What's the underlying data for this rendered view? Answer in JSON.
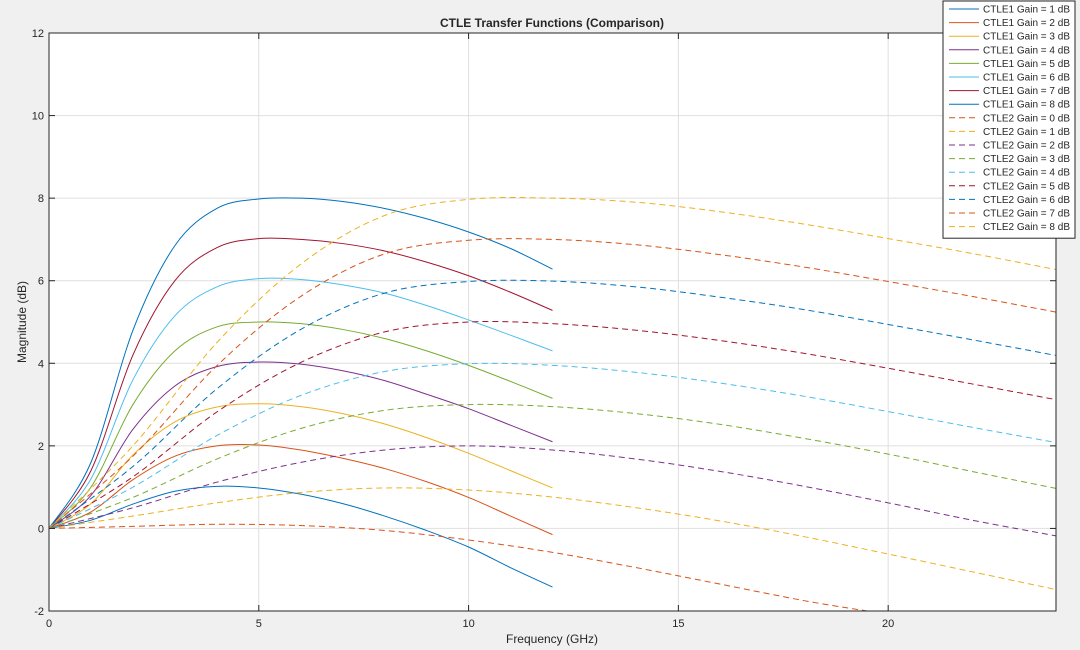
{
  "figure": {
    "background": "#f0f0f0",
    "axes_background": "#ffffff",
    "grid_color": "#dfdfdf"
  },
  "chart_data": {
    "type": "line",
    "title": "CTLE Transfer Functions (Comparison)",
    "xlabel": "Frequency (GHz)",
    "ylabel": "Magnitude (dB)",
    "xlim": [
      0,
      24
    ],
    "ylim": [
      -2,
      12
    ],
    "xticks": [
      0,
      5,
      10,
      15,
      20
    ],
    "yticks": [
      -2,
      0,
      2,
      4,
      6,
      8,
      10,
      12
    ],
    "grid": true,
    "legend_position": "top-right",
    "series": [
      {
        "name": "CTLE1 Gain = 1 dB",
        "style": "solid",
        "color": "#0072BD",
        "x": [
          0,
          1,
          2,
          3,
          4,
          5,
          6,
          7,
          8,
          9,
          10,
          11,
          12
        ],
        "y": [
          0,
          0.2,
          0.59,
          0.9,
          1.02,
          0.98,
          0.83,
          0.6,
          0.3,
          -0.05,
          -0.45,
          -0.95,
          -1.42
        ]
      },
      {
        "name": "CTLE1 Gain = 2 dB",
        "style": "solid",
        "color": "#D95319",
        "x": [
          0,
          1,
          2,
          3,
          4,
          5,
          6,
          7,
          8,
          9,
          10,
          11,
          12
        ],
        "y": [
          0,
          0.4,
          1.18,
          1.75,
          2.0,
          2.02,
          1.9,
          1.7,
          1.45,
          1.13,
          0.75,
          0.3,
          -0.15
        ]
      },
      {
        "name": "CTLE1 Gain = 3 dB",
        "style": "solid",
        "color": "#EDB120",
        "x": [
          0,
          1,
          2,
          3,
          4,
          5,
          6,
          7,
          8,
          9,
          10,
          11,
          12
        ],
        "y": [
          0,
          0.6,
          1.78,
          2.58,
          2.94,
          3.02,
          2.95,
          2.78,
          2.53,
          2.2,
          1.82,
          1.4,
          0.98
        ]
      },
      {
        "name": "CTLE1 Gain = 4 dB",
        "style": "solid",
        "color": "#7E2F8E",
        "x": [
          0,
          1,
          2,
          3,
          4,
          5,
          6,
          7,
          8,
          9,
          10,
          11,
          12
        ],
        "y": [
          0,
          0.8,
          2.4,
          3.45,
          3.92,
          4.03,
          3.98,
          3.82,
          3.58,
          3.25,
          2.9,
          2.5,
          2.1
        ]
      },
      {
        "name": "CTLE1 Gain = 5 dB",
        "style": "solid",
        "color": "#77AC30",
        "x": [
          0,
          1,
          2,
          3,
          4,
          5,
          6,
          7,
          8,
          9,
          10,
          11,
          12
        ],
        "y": [
          0,
          1.0,
          3.0,
          4.3,
          4.88,
          5.0,
          4.96,
          4.82,
          4.6,
          4.3,
          3.95,
          3.56,
          3.15
        ]
      },
      {
        "name": "CTLE1 Gain = 6 dB",
        "style": "solid",
        "color": "#4DBEEE",
        "x": [
          0,
          1,
          2,
          3,
          4,
          5,
          6,
          7,
          8,
          9,
          10,
          11,
          12
        ],
        "y": [
          0,
          1.2,
          3.6,
          5.15,
          5.85,
          6.05,
          6.03,
          5.9,
          5.7,
          5.4,
          5.05,
          4.68,
          4.3
        ]
      },
      {
        "name": "CTLE1 Gain = 7 dB",
        "style": "solid",
        "color": "#A2142F",
        "x": [
          0,
          1,
          2,
          3,
          4,
          5,
          6,
          7,
          8,
          9,
          10,
          11,
          12
        ],
        "y": [
          0,
          1.4,
          4.2,
          6.0,
          6.8,
          7.02,
          7.0,
          6.9,
          6.72,
          6.45,
          6.12,
          5.72,
          5.28
        ]
      },
      {
        "name": "CTLE1 Gain = 8 dB",
        "style": "solid",
        "color": "#0072BD",
        "x": [
          0,
          1,
          2,
          3,
          4,
          5,
          6,
          7,
          8,
          9,
          10,
          11,
          12
        ],
        "y": [
          0,
          1.6,
          4.8,
          6.85,
          7.75,
          7.98,
          8.0,
          7.92,
          7.75,
          7.5,
          7.18,
          6.78,
          6.28
        ]
      },
      {
        "name": "CTLE2 Gain = 0 dB",
        "style": "dashed",
        "color": "#D95319",
        "x": [
          0,
          2,
          4,
          6,
          8,
          10,
          12,
          14,
          16,
          18,
          19.5
        ],
        "y": [
          0,
          0.05,
          0.1,
          0.07,
          -0.05,
          -0.28,
          -0.58,
          -0.95,
          -1.35,
          -1.75,
          -2.0
        ]
      },
      {
        "name": "CTLE2 Gain = 1 dB",
        "style": "dashed",
        "color": "#EDB120",
        "x": [
          0,
          2,
          4,
          6,
          8,
          10,
          12,
          14,
          16,
          18,
          20,
          22,
          24
        ],
        "y": [
          0,
          0.3,
          0.62,
          0.87,
          0.98,
          0.93,
          0.76,
          0.5,
          0.18,
          -0.2,
          -0.62,
          -1.05,
          -1.48
        ]
      },
      {
        "name": "CTLE2 Gain = 2 dB",
        "style": "dashed",
        "color": "#7E2F8E",
        "x": [
          0,
          2,
          4,
          6,
          8,
          10,
          12,
          14,
          16,
          18,
          20,
          22,
          24
        ],
        "y": [
          0,
          0.5,
          1.12,
          1.6,
          1.9,
          2.0,
          1.9,
          1.68,
          1.38,
          1.02,
          0.62,
          0.2,
          -0.18
        ]
      },
      {
        "name": "CTLE2 Gain = 3 dB",
        "style": "dashed",
        "color": "#77AC30",
        "x": [
          0,
          2,
          4,
          6,
          8,
          10,
          12,
          14,
          16,
          18,
          20,
          22,
          24
        ],
        "y": [
          0,
          0.75,
          1.68,
          2.42,
          2.86,
          3.0,
          2.95,
          2.78,
          2.52,
          2.18,
          1.8,
          1.38,
          0.97
        ]
      },
      {
        "name": "CTLE2 Gain = 4 dB",
        "style": "dashed",
        "color": "#4DBEEE",
        "x": [
          0,
          2,
          4,
          6,
          8,
          10,
          12,
          14,
          16,
          18,
          20,
          22,
          24
        ],
        "y": [
          0,
          1.0,
          2.25,
          3.22,
          3.8,
          3.99,
          3.95,
          3.78,
          3.52,
          3.2,
          2.83,
          2.45,
          2.08
        ]
      },
      {
        "name": "CTLE2 Gain = 5 dB",
        "style": "dashed",
        "color": "#A2142F",
        "x": [
          0,
          2,
          4,
          6,
          8,
          10,
          12,
          14,
          16,
          18,
          20,
          22,
          24
        ],
        "y": [
          0,
          1.25,
          2.82,
          4.02,
          4.76,
          5.0,
          4.96,
          4.8,
          4.55,
          4.24,
          3.88,
          3.5,
          3.12
        ]
      },
      {
        "name": "CTLE2 Gain = 6 dB",
        "style": "dashed",
        "color": "#0072BD",
        "x": [
          0,
          2,
          4,
          6,
          8,
          10,
          12,
          14,
          16,
          18,
          20,
          22,
          24
        ],
        "y": [
          0,
          1.5,
          3.38,
          4.82,
          5.7,
          5.98,
          5.99,
          5.85,
          5.6,
          5.3,
          4.94,
          4.57,
          4.19
        ]
      },
      {
        "name": "CTLE2 Gain = 7 dB",
        "style": "dashed",
        "color": "#D95319",
        "x": [
          0,
          2,
          4,
          6,
          8,
          10,
          12,
          14,
          16,
          18,
          20,
          22,
          24
        ],
        "y": [
          0,
          1.75,
          3.94,
          5.62,
          6.65,
          6.98,
          7.0,
          6.87,
          6.63,
          6.33,
          5.98,
          5.62,
          5.24
        ]
      },
      {
        "name": "CTLE2 Gain = 8 dB",
        "style": "dashed",
        "color": "#EDB120",
        "x": [
          0,
          2,
          4,
          6,
          8,
          10,
          12,
          14,
          16,
          18,
          20,
          22,
          24
        ],
        "y": [
          0,
          2.0,
          4.5,
          6.4,
          7.58,
          7.97,
          8.0,
          7.9,
          7.67,
          7.37,
          7.02,
          6.66,
          6.27
        ]
      }
    ]
  }
}
